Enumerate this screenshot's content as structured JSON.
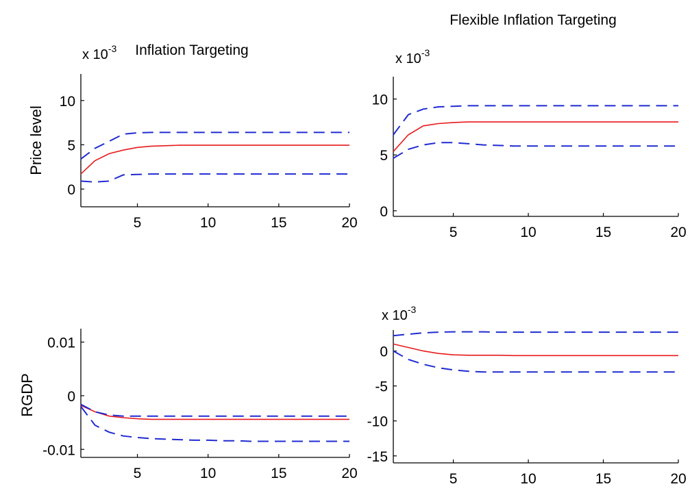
{
  "chart_data": [
    {
      "type": "line",
      "title": "Inflation Targeting",
      "ylabel": "Price level",
      "exponent": "x 10",
      "exponent_power": "-3",
      "xlim": [
        1,
        20
      ],
      "ylim": [
        -2,
        13
      ],
      "xticks": [
        "5",
        "10",
        "15",
        "20"
      ],
      "yticks": [
        "0",
        "5",
        "10"
      ],
      "x": [
        1,
        2,
        3,
        4,
        5,
        6,
        7,
        8,
        9,
        10,
        11,
        12,
        13,
        14,
        15,
        16,
        17,
        18,
        19,
        20
      ],
      "series": [
        {
          "color": "#e8191c",
          "style": "solid",
          "values": [
            1.7,
            3.2,
            4.0,
            4.4,
            4.7,
            4.85,
            4.9,
            4.95,
            4.95,
            4.95,
            4.95,
            4.95,
            4.95,
            4.95,
            4.95,
            4.95,
            4.95,
            4.95,
            4.95,
            4.95
          ]
        },
        {
          "color": "#1f2bd1",
          "style": "dashed",
          "values": [
            3.4,
            4.6,
            5.4,
            6.2,
            6.35,
            6.4,
            6.4,
            6.4,
            6.4,
            6.4,
            6.4,
            6.4,
            6.4,
            6.4,
            6.4,
            6.4,
            6.4,
            6.4,
            6.4,
            6.4
          ]
        },
        {
          "color": "#1f2bd1",
          "style": "dashed",
          "values": [
            0.9,
            0.8,
            0.9,
            1.6,
            1.65,
            1.7,
            1.7,
            1.7,
            1.7,
            1.7,
            1.7,
            1.7,
            1.7,
            1.7,
            1.7,
            1.7,
            1.7,
            1.7,
            1.7,
            1.7
          ]
        }
      ]
    },
    {
      "type": "line",
      "title": "Flexible Inflation Targeting",
      "ylabel": "",
      "exponent": "x 10",
      "exponent_power": "-3",
      "xlim": [
        1,
        20
      ],
      "ylim": [
        -0.5,
        12
      ],
      "xticks": [
        "5",
        "10",
        "15",
        "20"
      ],
      "yticks": [
        "0",
        "5",
        "10"
      ],
      "x": [
        1,
        2,
        3,
        4,
        5,
        6,
        7,
        8,
        9,
        10,
        11,
        12,
        13,
        14,
        15,
        16,
        17,
        18,
        19,
        20
      ],
      "series": [
        {
          "color": "#e8191c",
          "style": "solid",
          "values": [
            5.3,
            6.8,
            7.6,
            7.8,
            7.9,
            7.95,
            7.95,
            7.95,
            7.95,
            7.95,
            7.95,
            7.95,
            7.95,
            7.95,
            7.95,
            7.95,
            7.95,
            7.95,
            7.95,
            7.95
          ]
        },
        {
          "color": "#1f2bd1",
          "style": "dashed",
          "values": [
            6.8,
            8.6,
            9.1,
            9.3,
            9.35,
            9.4,
            9.4,
            9.4,
            9.4,
            9.4,
            9.4,
            9.4,
            9.4,
            9.4,
            9.4,
            9.4,
            9.4,
            9.4,
            9.4,
            9.4
          ]
        },
        {
          "color": "#1f2bd1",
          "style": "dashed",
          "values": [
            4.7,
            5.5,
            5.9,
            6.1,
            6.1,
            6.0,
            5.9,
            5.85,
            5.8,
            5.8,
            5.8,
            5.8,
            5.8,
            5.8,
            5.8,
            5.8,
            5.8,
            5.8,
            5.8,
            5.8
          ]
        }
      ]
    },
    {
      "type": "line",
      "title": "",
      "ylabel": "RGDP",
      "exponent": "",
      "exponent_power": "",
      "xlim": [
        1,
        20
      ],
      "ylim": [
        -0.0115,
        0.0125
      ],
      "xticks": [
        "5",
        "10",
        "15",
        "20"
      ],
      "yticks": [
        "-0.01",
        "0",
        "0.01"
      ],
      "x": [
        1,
        2,
        3,
        4,
        5,
        6,
        7,
        8,
        9,
        10,
        11,
        12,
        13,
        14,
        15,
        16,
        17,
        18,
        19,
        20
      ],
      "series": [
        {
          "color": "#e8191c",
          "style": "solid",
          "values": [
            -0.0018,
            -0.003,
            -0.0038,
            -0.0041,
            -0.0043,
            -0.0044,
            -0.0044,
            -0.0044,
            -0.0044,
            -0.0044,
            -0.0044,
            -0.0044,
            -0.0044,
            -0.0044,
            -0.0044,
            -0.0044,
            -0.0044,
            -0.0044,
            -0.0044,
            -0.0044
          ]
        },
        {
          "color": "#1f2bd1",
          "style": "dashed",
          "values": [
            -0.0016,
            -0.003,
            -0.0036,
            -0.0038,
            -0.0038,
            -0.0038,
            -0.0038,
            -0.0038,
            -0.0038,
            -0.0038,
            -0.0038,
            -0.0038,
            -0.0038,
            -0.0038,
            -0.0038,
            -0.0038,
            -0.0038,
            -0.0038,
            -0.0038,
            -0.0038
          ]
        },
        {
          "color": "#1f2bd1",
          "style": "dashed",
          "values": [
            -0.002,
            -0.0055,
            -0.0068,
            -0.0075,
            -0.0078,
            -0.008,
            -0.0081,
            -0.0082,
            -0.0083,
            -0.0083,
            -0.0084,
            -0.0084,
            -0.0085,
            -0.0085,
            -0.0085,
            -0.0085,
            -0.0085,
            -0.0085,
            -0.0085,
            -0.0085
          ]
        }
      ]
    },
    {
      "type": "line",
      "title": "",
      "ylabel": "",
      "exponent": "x 10",
      "exponent_power": "-3",
      "xlim": [
        1,
        20
      ],
      "ylim": [
        -16,
        3
      ],
      "xticks": [
        "5",
        "10",
        "15",
        "20"
      ],
      "yticks": [
        "-15",
        "-10",
        "-5",
        "0"
      ],
      "x": [
        1,
        2,
        3,
        4,
        5,
        6,
        7,
        8,
        9,
        10,
        11,
        12,
        13,
        14,
        15,
        16,
        17,
        18,
        19,
        20
      ],
      "series": [
        {
          "color": "#e8191c",
          "style": "solid",
          "values": [
            1.0,
            0.5,
            0.0,
            -0.35,
            -0.55,
            -0.6,
            -0.6,
            -0.6,
            -0.65,
            -0.65,
            -0.65,
            -0.65,
            -0.65,
            -0.65,
            -0.65,
            -0.65,
            -0.65,
            -0.65,
            -0.65,
            -0.65
          ]
        },
        {
          "color": "#1f2bd1",
          "style": "dashed",
          "values": [
            2.2,
            2.4,
            2.6,
            2.7,
            2.75,
            2.75,
            2.75,
            2.7,
            2.7,
            2.7,
            2.7,
            2.7,
            2.7,
            2.7,
            2.7,
            2.7,
            2.7,
            2.7,
            2.7,
            2.7
          ]
        },
        {
          "color": "#1f2bd1",
          "style": "dashed",
          "values": [
            0.0,
            -1.2,
            -1.9,
            -2.4,
            -2.7,
            -2.9,
            -3.0,
            -3.0,
            -3.0,
            -3.0,
            -3.0,
            -3.0,
            -3.0,
            -3.0,
            -3.0,
            -3.0,
            -3.0,
            -3.0,
            -3.0,
            -3.0
          ]
        }
      ]
    }
  ]
}
